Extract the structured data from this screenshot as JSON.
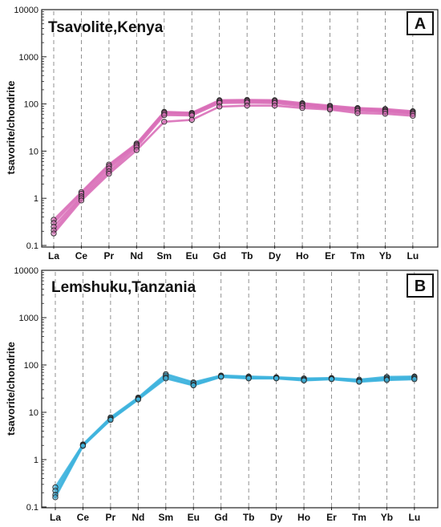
{
  "chart_data": [
    {
      "type": "line",
      "panel_label": "A",
      "title": "Tsavolite,Kenya",
      "xlabel": "",
      "ylabel": "tsavorite/chondrite",
      "yscale": "log",
      "ylim": [
        0.1,
        10000
      ],
      "yticks": [
        "0.1",
        "1",
        "10",
        "100",
        "1000",
        "10000"
      ],
      "categories": [
        "La",
        "Ce",
        "Pr",
        "Nd",
        "Sm",
        "Eu",
        "Gd",
        "Tb",
        "Dy",
        "Ho",
        "Er",
        "Tm",
        "Yb",
        "Lu"
      ],
      "grid": "dashed vertical lines at categories",
      "color": "#d96fb8",
      "series": [
        {
          "values": [
            0.35,
            1.35,
            5.2,
            14.5,
            68,
            65,
            120,
            122,
            120,
            104,
            92,
            82,
            78,
            70
          ]
        },
        {
          "values": [
            0.3,
            1.25,
            4.8,
            13.8,
            66,
            63,
            116,
            118,
            116,
            100,
            88,
            79,
            75,
            67
          ]
        },
        {
          "values": [
            0.25,
            1.1,
            4.3,
            13,
            62,
            60,
            110,
            112,
            110,
            95,
            84,
            75,
            71,
            64
          ]
        },
        {
          "values": [
            0.21,
            1.0,
            3.7,
            12,
            58,
            57,
            105,
            106,
            104,
            90,
            80,
            71,
            68,
            61
          ]
        },
        {
          "values": [
            0.18,
            0.9,
            3.3,
            10.5,
            42,
            46,
            88,
            92,
            92,
            82,
            76,
            64,
            62,
            56
          ]
        }
      ]
    },
    {
      "type": "line",
      "panel_label": "B",
      "title": "Lemshuku,Tanzania",
      "xlabel": "",
      "ylabel": "tsavorite/chondrite",
      "yscale": "log",
      "ylim": [
        0.1,
        10000
      ],
      "yticks": [
        "0.1",
        "1",
        "10",
        "100",
        "1000",
        "10000"
      ],
      "categories": [
        "La",
        "Ce",
        "Pr",
        "Nd",
        "Sm",
        "Eu",
        "Gd",
        "Tb",
        "Dy",
        "Ho",
        "Er",
        "Tm",
        "Yb",
        "Lu"
      ],
      "grid": "dashed vertical lines at categories",
      "color": "#3fb4de",
      "series": [
        {
          "values": [
            0.26,
            2.1,
            7.8,
            20.5,
            64,
            43,
            60,
            57,
            55,
            52,
            53,
            49,
            56,
            57
          ]
        },
        {
          "values": [
            0.22,
            2.05,
            7.4,
            19.8,
            60,
            41,
            58,
            55,
            54,
            50,
            52,
            47,
            53,
            55
          ]
        },
        {
          "values": [
            0.18,
            2.0,
            7.1,
            19.2,
            55,
            38,
            57,
            53,
            53,
            48,
            51,
            45,
            50,
            52
          ]
        },
        {
          "values": [
            0.16,
            1.95,
            6.9,
            18.6,
            52,
            37,
            56,
            52,
            52,
            47,
            50,
            44,
            48,
            50
          ]
        }
      ]
    }
  ]
}
